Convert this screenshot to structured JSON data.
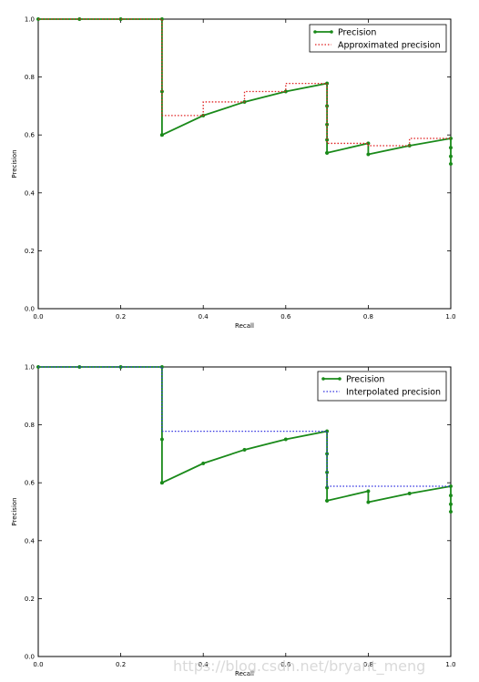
{
  "chart_data": [
    {
      "type": "line",
      "xlabel": "Recall",
      "ylabel": "Precision",
      "xlim": [
        0.0,
        1.0
      ],
      "ylim": [
        0.0,
        1.0
      ],
      "xticks": [
        "0.0",
        "0.2",
        "0.4",
        "0.6",
        "0.8",
        "1.0"
      ],
      "yticks": [
        "0.0",
        "0.2",
        "0.4",
        "0.6",
        "0.8",
        "1.0"
      ],
      "grid": false,
      "legend_position": "top-right",
      "series": [
        {
          "name": "Precision",
          "style": "solid",
          "color": "#1a8a1a",
          "markers": true,
          "x": [
            0.0,
            0.1,
            0.2,
            0.3,
            0.3,
            0.3,
            0.3,
            0.4,
            0.5,
            0.6,
            0.7,
            0.7,
            0.7,
            0.7,
            0.7,
            0.7,
            0.8,
            0.8,
            0.9,
            1.0,
            1.0,
            1.0,
            1.0
          ],
          "y": [
            1.0,
            1.0,
            1.0,
            1.0,
            0.75,
            0.6,
            0.6,
            0.667,
            0.714,
            0.75,
            0.778,
            0.7,
            0.636,
            0.583,
            0.538,
            0.538,
            0.571,
            0.533,
            0.563,
            0.588,
            0.556,
            0.526,
            0.5
          ]
        },
        {
          "name": "Approximated precision",
          "style": "dotted",
          "color": "#e02020",
          "markers": false,
          "x": [
            0.0,
            0.3,
            0.3,
            0.4,
            0.4,
            0.5,
            0.5,
            0.6,
            0.6,
            0.7,
            0.7,
            0.8,
            0.8,
            0.9,
            0.9,
            1.0
          ],
          "y": [
            1.0,
            1.0,
            0.667,
            0.667,
            0.714,
            0.714,
            0.75,
            0.75,
            0.778,
            0.778,
            0.571,
            0.571,
            0.563,
            0.563,
            0.588,
            0.588
          ]
        }
      ]
    },
    {
      "type": "line",
      "xlabel": "Recall",
      "ylabel": "Precision",
      "xlim": [
        0.0,
        1.0
      ],
      "ylim": [
        0.0,
        1.0
      ],
      "xticks": [
        "0.0",
        "0.2",
        "0.4",
        "0.6",
        "0.8",
        "1.0"
      ],
      "yticks": [
        "0.0",
        "0.2",
        "0.4",
        "0.6",
        "0.8",
        "1.0"
      ],
      "grid": false,
      "legend_position": "top-right",
      "series": [
        {
          "name": "Precision",
          "style": "solid",
          "color": "#1a8a1a",
          "markers": true,
          "x": [
            0.0,
            0.1,
            0.2,
            0.3,
            0.3,
            0.3,
            0.3,
            0.4,
            0.5,
            0.6,
            0.7,
            0.7,
            0.7,
            0.7,
            0.7,
            0.7,
            0.8,
            0.8,
            0.9,
            1.0,
            1.0,
            1.0,
            1.0
          ],
          "y": [
            1.0,
            1.0,
            1.0,
            1.0,
            0.75,
            0.6,
            0.6,
            0.667,
            0.714,
            0.75,
            0.778,
            0.7,
            0.636,
            0.583,
            0.538,
            0.538,
            0.571,
            0.533,
            0.563,
            0.588,
            0.556,
            0.526,
            0.5
          ]
        },
        {
          "name": "Interpolated precision",
          "style": "dotted",
          "color": "#3030e0",
          "markers": false,
          "x": [
            0.0,
            0.3,
            0.3,
            0.7,
            0.7,
            1.0
          ],
          "y": [
            1.0,
            1.0,
            0.778,
            0.778,
            0.588,
            0.588
          ]
        }
      ]
    }
  ],
  "watermark": "https://blog.csdn.net/bryant_meng"
}
